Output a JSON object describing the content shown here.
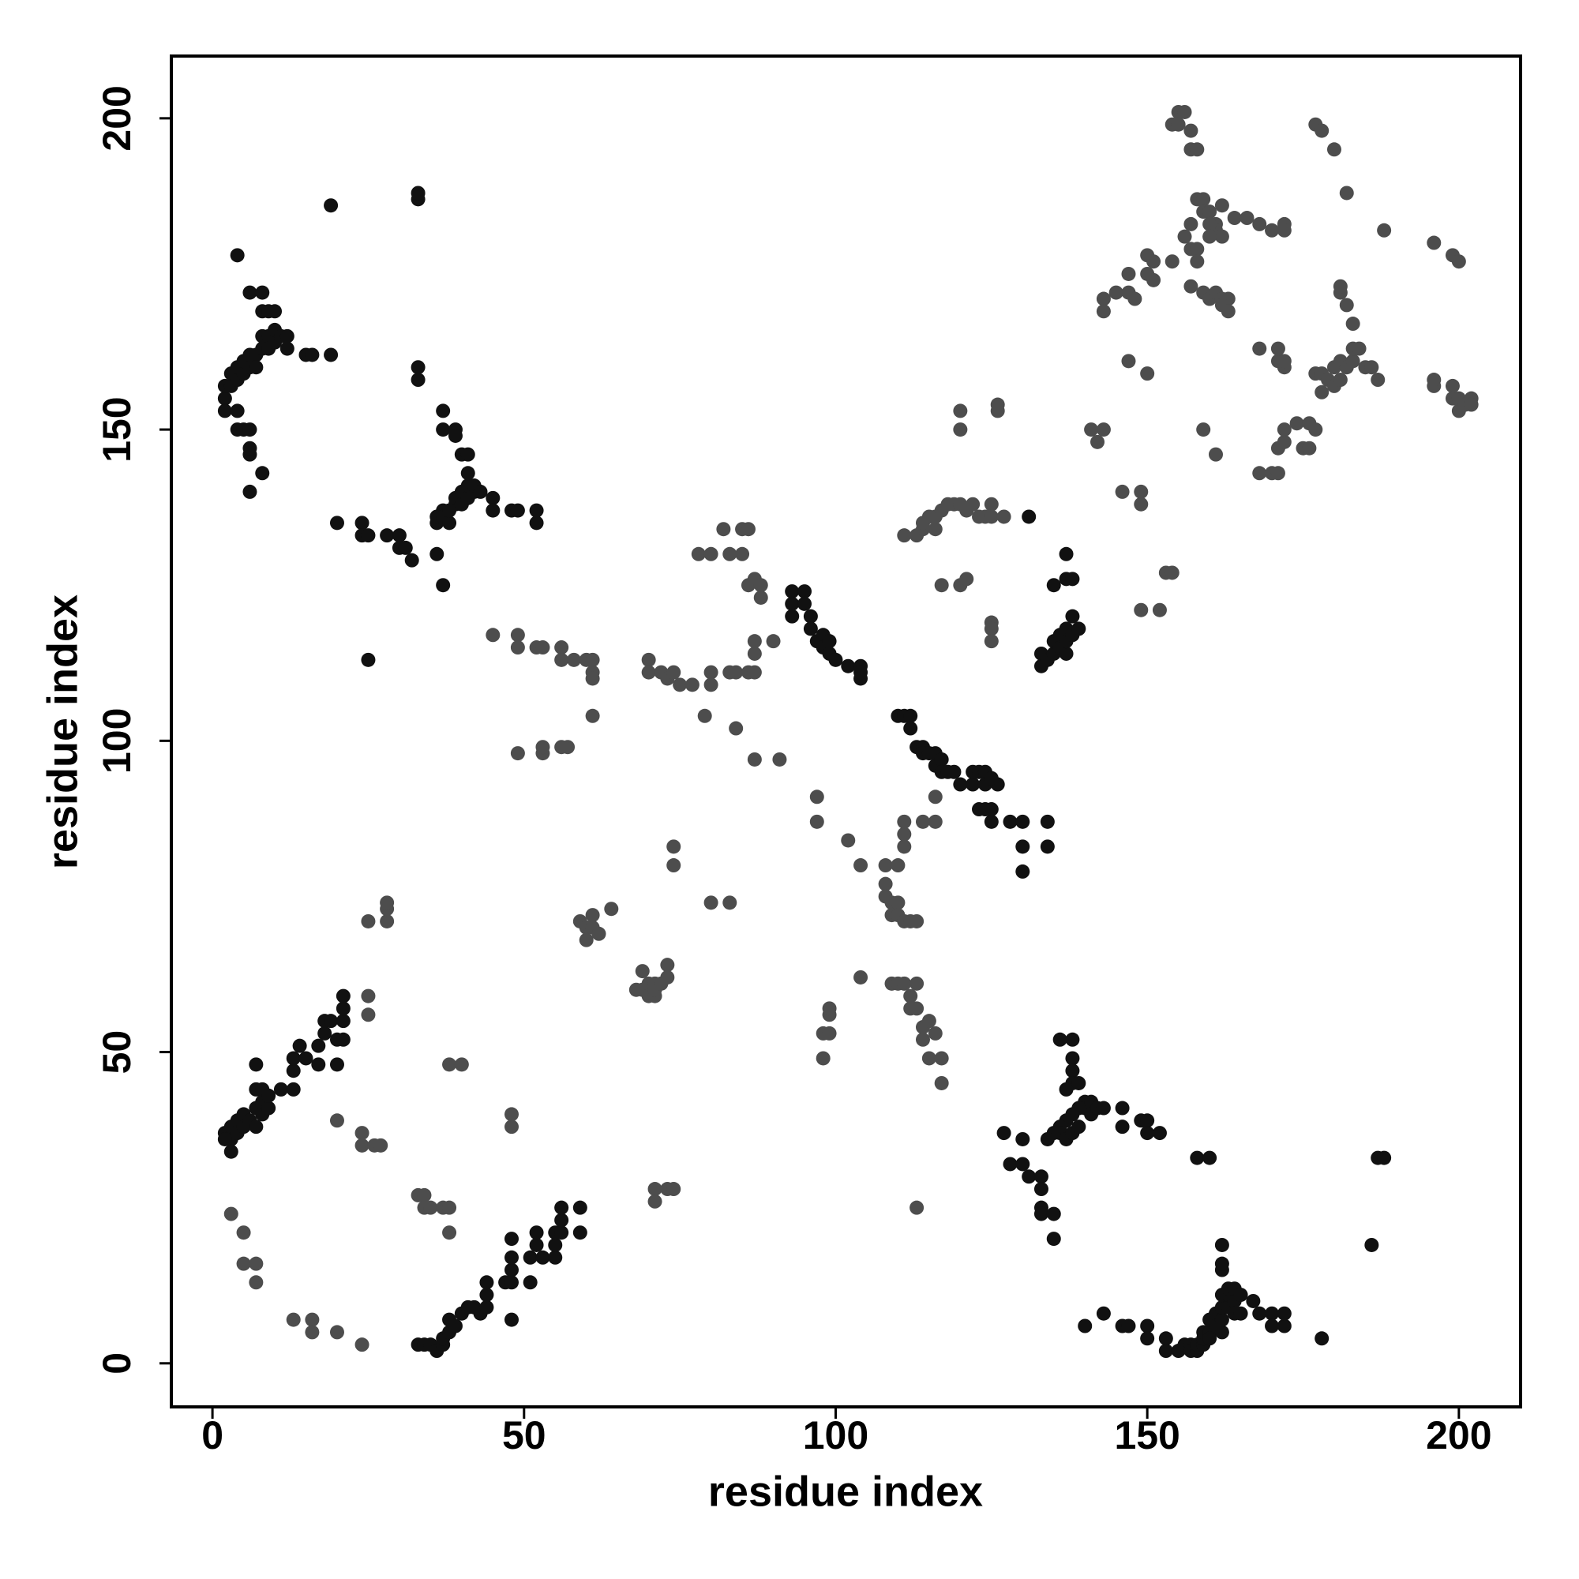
{
  "chart_data": {
    "type": "scatter",
    "x_label": "residue index",
    "y_label": "residue index",
    "xlim": [
      -6.6,
      209.9
    ],
    "ylim": [
      -7,
      210
    ],
    "xticks": [
      0,
      50,
      100,
      150,
      200
    ],
    "yticks": [
      0,
      50,
      100,
      150,
      200
    ],
    "grid": false,
    "series": [
      {
        "color": "#4d4d4d",
        "x": [
          24,
          24,
          25,
          25,
          26,
          27,
          20,
          25,
          28,
          28,
          28
        ],
        "values": [
          37,
          35,
          59,
          56,
          35,
          35,
          39,
          71,
          71,
          73,
          74
        ]
      },
      {
        "color": "#4d4d4d",
        "x": [
          3,
          5,
          5,
          7,
          7,
          13,
          16,
          16,
          20,
          24
        ],
        "values": [
          24,
          21,
          16,
          16,
          13,
          7,
          7,
          5,
          5,
          3
        ]
      },
      {
        "color": "#4d4d4d",
        "x": [
          33,
          34,
          34,
          35,
          37,
          38,
          38,
          38,
          40,
          48,
          48
        ],
        "values": [
          27,
          25,
          27,
          25,
          25,
          25,
          21,
          48,
          48,
          40,
          38
        ]
      },
      {
        "color": "#4d4d4d",
        "x": [
          49,
          53,
          53,
          56,
          57,
          61
        ],
        "values": [
          98,
          98,
          99,
          99,
          99,
          104
        ]
      },
      {
        "color": "#4d4d4d",
        "x": [
          45,
          49,
          49,
          52,
          53,
          56,
          56,
          58,
          60,
          61,
          61,
          61,
          70,
          70,
          72,
          73,
          74,
          75,
          77,
          80,
          80,
          83,
          84,
          86,
          79,
          84,
          87,
          91
        ],
        "values": [
          117,
          117,
          115,
          115,
          115,
          115,
          113,
          113,
          113,
          113,
          111,
          110,
          113,
          111,
          111,
          110,
          111,
          109,
          109,
          111,
          109,
          111,
          111,
          111,
          104,
          102,
          97,
          97
        ]
      },
      {
        "color": "#4d4d4d",
        "x": [
          78,
          80,
          82,
          83,
          85,
          85,
          86,
          86,
          87,
          88,
          88,
          87,
          87,
          87,
          90
        ],
        "values": [
          130,
          130,
          134,
          130,
          130,
          134,
          134,
          125,
          126,
          125,
          123,
          116,
          114,
          111,
          116
        ]
      },
      {
        "color": "#4d4d4d",
        "x": [
          59,
          60,
          60,
          61,
          61,
          62,
          64,
          68,
          69,
          69,
          70,
          70,
          71,
          71,
          71,
          72,
          73,
          73,
          74,
          74,
          71,
          71,
          73,
          74,
          80,
          83
        ],
        "values": [
          71,
          70,
          68,
          72,
          70,
          69,
          73,
          60,
          60,
          63,
          61,
          59,
          61,
          59,
          60,
          61,
          64,
          62,
          83,
          80,
          28,
          26,
          28,
          28,
          74,
          74
        ]
      },
      {
        "color": "#4d4d4d",
        "x": [
          97,
          97,
          98,
          98,
          99,
          99,
          99,
          102,
          104,
          104
        ],
        "values": [
          91,
          87,
          49,
          53,
          53,
          56,
          57,
          84,
          80,
          62
        ]
      },
      {
        "color": "#4d4d4d",
        "x": [
          108,
          108,
          108,
          109,
          109,
          110,
          110,
          110,
          111,
          111,
          111,
          111,
          112,
          113,
          114,
          116,
          116,
          109,
          110,
          111,
          112,
          112,
          113,
          113,
          114,
          114,
          115,
          115,
          116,
          117,
          117,
          113
        ],
        "values": [
          80,
          77,
          75,
          74,
          72,
          80,
          74,
          72,
          83,
          85,
          87,
          71,
          71,
          71,
          87,
          87,
          91,
          61,
          61,
          61,
          57,
          59,
          57,
          61,
          54,
          52,
          55,
          49,
          53,
          49,
          45,
          25
        ]
      },
      {
        "color": "#4d4d4d",
        "x": [
          111,
          113,
          114,
          114,
          115,
          116,
          116,
          117,
          118,
          119,
          120,
          121,
          122,
          123,
          124,
          125,
          125,
          127,
          117,
          120,
          121,
          125,
          125,
          125,
          120,
          120,
          126,
          126
        ],
        "values": [
          133,
          133,
          134,
          135,
          136,
          134,
          136,
          137,
          138,
          138,
          138,
          137,
          138,
          136,
          136,
          138,
          136,
          136,
          125,
          125,
          126,
          119,
          118,
          116,
          153,
          150,
          153,
          154
        ]
      },
      {
        "color": "#4d4d4d",
        "x": [
          141,
          142,
          143,
          146,
          149,
          149,
          149,
          152,
          153,
          154,
          147,
          150
        ],
        "values": [
          150,
          148,
          150,
          140,
          140,
          138,
          121,
          121,
          127,
          127,
          161,
          159
        ]
      },
      {
        "color": "#4d4d4d",
        "x": [
          143,
          143,
          145,
          147,
          147,
          148,
          150,
          150,
          151,
          151,
          154,
          155,
          155,
          156,
          157,
          157,
          158,
          158,
          159,
          159,
          160,
          161,
          161,
          162,
          160,
          157,
          156,
          157,
          158,
          158,
          160,
          154,
          159,
          160,
          161,
          162,
          163,
          162,
          163,
          164,
          162,
          166,
          168,
          168,
          170,
          172,
          172,
          168,
          170,
          171,
          171,
          172,
          172,
          171,
          171,
          172,
          172,
          174,
          175,
          176,
          176,
          177,
          177,
          178,
          178,
          179,
          180,
          180,
          181,
          181,
          182,
          183,
          183,
          184,
          185,
          186,
          187,
          183,
          182,
          181,
          181,
          182,
          177,
          178,
          180,
          188,
          196,
          199,
          200,
          196,
          196,
          199,
          199,
          200,
          200,
          201,
          202,
          202,
          159,
          161,
          157
        ],
        "values": [
          171,
          169,
          172,
          175,
          172,
          171,
          175,
          178,
          177,
          174,
          199,
          201,
          199,
          201,
          198,
          195,
          195,
          187,
          187,
          185,
          185,
          183,
          182,
          181,
          183,
          183,
          181,
          179,
          179,
          177,
          181,
          177,
          172,
          171,
          172,
          171,
          171,
          170,
          169,
          184,
          186,
          184,
          163,
          183,
          182,
          183,
          182,
          143,
          143,
          143,
          147,
          148,
          150,
          161,
          163,
          160,
          161,
          151,
          147,
          147,
          151,
          150,
          159,
          156,
          159,
          158,
          157,
          160,
          158,
          161,
          160,
          161,
          163,
          163,
          160,
          160,
          158,
          167,
          170,
          172,
          173,
          188,
          199,
          198,
          195,
          182,
          180,
          178,
          177,
          157,
          158,
          157,
          155,
          153,
          155,
          154,
          155,
          154,
          150,
          146,
          173
        ]
      },
      {
        "color": "#111111",
        "x": [
          2,
          3,
          3,
          4,
          4,
          5,
          5,
          6,
          7,
          7,
          7,
          8,
          8,
          8,
          9,
          9,
          11,
          13,
          13,
          13,
          14,
          15,
          17,
          17,
          18,
          18,
          19,
          20,
          21,
          21,
          21,
          21,
          7,
          20,
          2,
          3
        ],
        "values": [
          37,
          36,
          38,
          37,
          39,
          38,
          40,
          39,
          38,
          41,
          44,
          40,
          42,
          44,
          41,
          43,
          44,
          44,
          47,
          49,
          51,
          49,
          48,
          51,
          53,
          55,
          55,
          52,
          52,
          55,
          57,
          59,
          48,
          48,
          36,
          34
        ]
      },
      {
        "color": "#111111",
        "x": [
          33,
          34,
          35,
          36,
          37,
          37,
          38,
          38,
          39,
          40,
          41,
          42,
          43,
          44,
          44,
          44,
          47,
          48,
          48,
          48,
          48,
          48,
          51,
          51,
          52,
          52,
          53,
          55,
          55,
          55,
          56,
          56,
          56,
          59,
          59
        ],
        "values": [
          3,
          3,
          3,
          2,
          3,
          4,
          5,
          7,
          6,
          8,
          9,
          9,
          8,
          9,
          11,
          13,
          13,
          13,
          15,
          17,
          20,
          7,
          13,
          17,
          19,
          21,
          17,
          17,
          19,
          21,
          21,
          23,
          25,
          25,
          21
        ]
      },
      {
        "color": "#111111",
        "x": [
          93,
          93,
          93,
          95,
          95,
          96,
          96,
          97,
          98,
          98,
          99,
          99,
          100,
          102,
          104,
          104,
          104
        ],
        "values": [
          124,
          122,
          120,
          124,
          122,
          120,
          118,
          116,
          117,
          115,
          116,
          114,
          113,
          112,
          112,
          110,
          111
        ]
      },
      {
        "color": "#111111",
        "x": [
          110,
          111,
          112,
          112,
          113,
          114,
          114,
          115,
          116,
          116,
          117,
          117,
          118,
          119,
          120,
          122,
          122,
          123,
          124,
          124,
          124,
          125,
          125,
          126,
          128,
          130,
          130,
          130,
          134,
          134,
          123,
          125
        ],
        "values": [
          104,
          104,
          104,
          102,
          99,
          99,
          98,
          98,
          96,
          98,
          97,
          95,
          95,
          95,
          93,
          93,
          95,
          95,
          95,
          93,
          89,
          89,
          87,
          93,
          87,
          87,
          83,
          79,
          87,
          83,
          89,
          94
        ]
      },
      {
        "color": "#111111",
        "x": [
          2,
          2,
          2,
          3,
          3,
          4,
          4,
          5,
          5,
          6,
          6,
          7,
          7,
          8,
          8,
          9,
          9,
          10,
          10,
          11,
          12,
          12,
          15,
          16,
          19,
          6,
          8,
          8,
          9,
          10,
          4,
          5,
          6,
          6,
          6,
          4,
          6,
          8,
          4,
          19,
          33,
          33,
          33,
          33
        ],
        "values": [
          155,
          157,
          153,
          157,
          159,
          158,
          160,
          159,
          161,
          160,
          162,
          162,
          160,
          163,
          165,
          165,
          163,
          164,
          166,
          165,
          163,
          165,
          162,
          162,
          162,
          172,
          172,
          169,
          169,
          169,
          150,
          150,
          150,
          146,
          147,
          153,
          140,
          143,
          178,
          186,
          187,
          188,
          160,
          158
        ]
      },
      {
        "color": "#111111",
        "x": [
          133,
          133,
          134,
          135,
          135,
          136,
          136,
          137,
          137,
          137,
          138,
          138,
          139,
          135,
          137,
          138,
          137,
          131
        ],
        "values": [
          112,
          114,
          113,
          114,
          116,
          115,
          117,
          114,
          116,
          118,
          117,
          120,
          118,
          125,
          126,
          126,
          130,
          136
        ]
      },
      {
        "color": "#111111",
        "x": [
          36,
          36,
          36,
          37,
          37,
          37,
          37,
          37,
          38,
          38,
          39,
          39,
          39,
          39,
          40,
          40,
          40,
          41,
          41,
          41,
          41,
          42,
          42,
          43,
          45,
          45,
          48,
          49,
          52,
          52,
          24,
          24,
          25,
          28,
          30,
          30,
          31,
          32,
          20,
          25
        ],
        "values": [
          135,
          130,
          136,
          137,
          136,
          125,
          150,
          153,
          135,
          137,
          138,
          139,
          150,
          149,
          140,
          138,
          146,
          139,
          141,
          143,
          146,
          140,
          141,
          140,
          139,
          137,
          137,
          137,
          137,
          135,
          135,
          133,
          133,
          133,
          133,
          131,
          131,
          129,
          135,
          113
        ]
      },
      {
        "color": "#111111",
        "x": [
          138,
          136,
          138,
          138,
          138,
          137,
          139,
          140,
          140,
          141,
          139,
          138,
          137,
          136,
          136,
          135,
          134,
          137,
          138,
          139,
          141,
          142,
          143,
          146,
          146,
          149,
          150,
          150,
          152,
          127,
          130,
          128,
          130,
          131,
          133,
          133,
          133,
          133,
          135,
          135,
          140,
          143,
          146,
          147,
          150,
          150,
          153,
          153,
          155,
          156,
          157,
          157,
          158,
          158,
          159,
          159,
          159,
          160,
          160,
          160,
          161,
          161,
          162,
          162,
          162,
          162,
          162,
          162,
          162,
          163,
          163,
          163,
          164,
          164,
          164,
          165,
          165,
          167,
          168,
          170,
          170,
          172,
          172,
          178,
          158,
          160,
          186,
          187,
          188
        ],
        "values": [
          52,
          52,
          49,
          47,
          45,
          44,
          45,
          42,
          41,
          42,
          41,
          40,
          39,
          38,
          37,
          37,
          36,
          36,
          37,
          38,
          40,
          41,
          41,
          41,
          38,
          39,
          39,
          37,
          37,
          37,
          36,
          32,
          32,
          30,
          30,
          28,
          25,
          24,
          24,
          20,
          6,
          8,
          6,
          6,
          6,
          4,
          4,
          2,
          2,
          3,
          3,
          2,
          2,
          3,
          3,
          4,
          5,
          5,
          4,
          7,
          6,
          8,
          5,
          7,
          9,
          11,
          15,
          16,
          19,
          9,
          11,
          12,
          10,
          8,
          12,
          11,
          8,
          10,
          8,
          8,
          6,
          6,
          8,
          4,
          33,
          33,
          19,
          33,
          33
        ]
      }
    ]
  }
}
